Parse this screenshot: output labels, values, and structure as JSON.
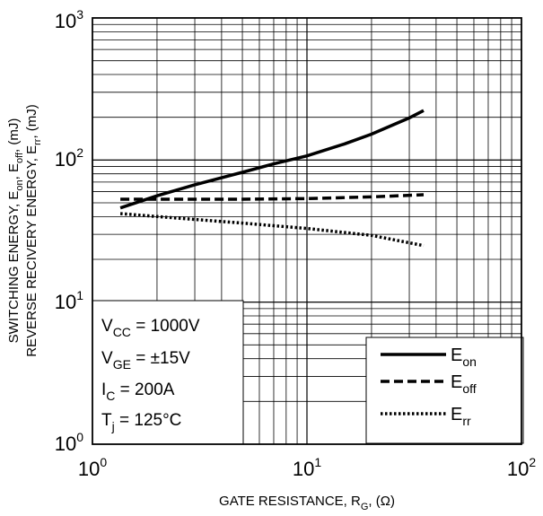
{
  "chart_data": {
    "type": "line",
    "x_scale": "log",
    "y_scale": "log",
    "xlim": [
      1,
      100
    ],
    "ylim": [
      1,
      1000
    ],
    "grid": true,
    "legend_position": "bottom-right",
    "x_ticks": [
      {
        "base": "10",
        "exp": "0"
      },
      {
        "base": "10",
        "exp": "1"
      },
      {
        "base": "10",
        "exp": "2"
      }
    ],
    "y_ticks": [
      {
        "base": "10",
        "exp": "0"
      },
      {
        "base": "10",
        "exp": "1"
      },
      {
        "base": "10",
        "exp": "2"
      },
      {
        "base": "10",
        "exp": "3"
      }
    ],
    "xlabel": {
      "main": "GATE RESISTANCE, R",
      "sub": "G",
      "tail": ", (Ω)"
    },
    "ylabel_line1": {
      "p1": "SWITCHING ENERGY, E",
      "s1": "on",
      "p2": ", E",
      "s2": "off",
      "p3": ", (mJ)"
    },
    "ylabel_line2": {
      "p1": "REVERSE RECIVERY ENERGY, E",
      "s1": "rr",
      "p2": ", (mJ)"
    },
    "conditions": [
      {
        "pre": "V",
        "sub": "CC",
        "post": " = 1000V"
      },
      {
        "pre": "V",
        "sub": "GE",
        "post": " = ±15V"
      },
      {
        "pre": "I",
        "sub": "C",
        "post": " = 200A"
      },
      {
        "pre": "T",
        "sub": "j",
        "post": " = 125°C"
      }
    ],
    "series": [
      {
        "name": {
          "pre": "E",
          "sub": "on"
        },
        "style": "solid",
        "x": [
          1.35,
          2,
          3,
          5,
          7,
          10,
          15,
          20,
          30,
          35
        ],
        "y": [
          46,
          56,
          67,
          82,
          94,
          107,
          130,
          152,
          198,
          223
        ]
      },
      {
        "name": {
          "pre": "E",
          "sub": "off"
        },
        "style": "dashed",
        "x": [
          1.35,
          2,
          5,
          10,
          20,
          35
        ],
        "y": [
          53,
          53,
          53,
          53.5,
          55,
          57
        ]
      },
      {
        "name": {
          "pre": "E",
          "sub": "rr"
        },
        "style": "dotted",
        "x": [
          1.35,
          2,
          5,
          10,
          20,
          35
        ],
        "y": [
          42,
          40,
          36,
          33,
          29.5,
          25
        ]
      }
    ]
  }
}
